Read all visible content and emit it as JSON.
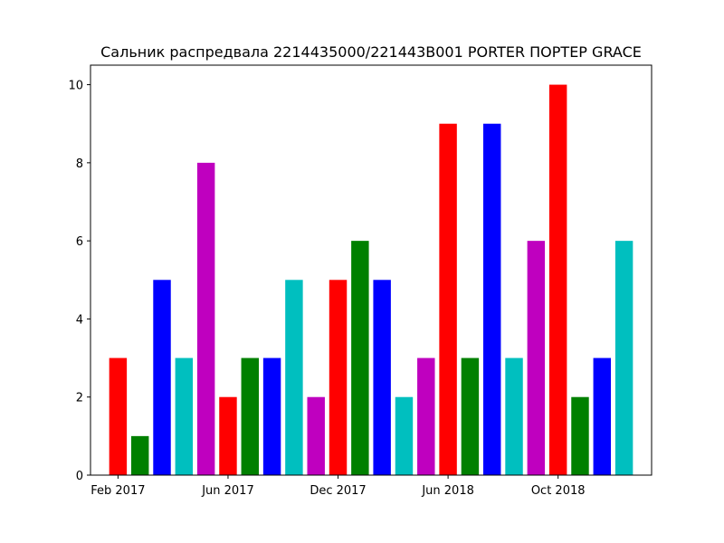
{
  "chart_data": {
    "type": "bar",
    "title": "Сальник распредвала 2214435000/221443B001 PORTER ПОРТЕР GRACE",
    "xlabel": "",
    "ylabel": "",
    "ylim": [
      0,
      10.5
    ],
    "yticks": [
      0,
      2,
      4,
      6,
      8,
      10
    ],
    "x_axis": {
      "type": "category-index",
      "range": [
        -1.25,
        24.25
      ],
      "ticks": [
        {
          "index": 0,
          "label": "Feb 2017"
        },
        {
          "index": 5,
          "label": "Jun 2017"
        },
        {
          "index": 10,
          "label": "Dec 2017"
        },
        {
          "index": 15,
          "label": "Jun 2018"
        },
        {
          "index": 20,
          "label": "Oct 2018"
        }
      ]
    },
    "bar_width": 0.8,
    "color_cycle": [
      "#ff0000",
      "#008000",
      "#0000ff",
      "#00bfbf",
      "#bf00bf"
    ],
    "values": [
      3,
      1,
      5,
      3,
      8,
      2,
      3,
      3,
      5,
      2,
      5,
      6,
      5,
      2,
      3,
      9,
      3,
      9,
      3,
      6,
      10,
      2,
      3,
      6
    ],
    "grid": false,
    "legend": "none"
  }
}
